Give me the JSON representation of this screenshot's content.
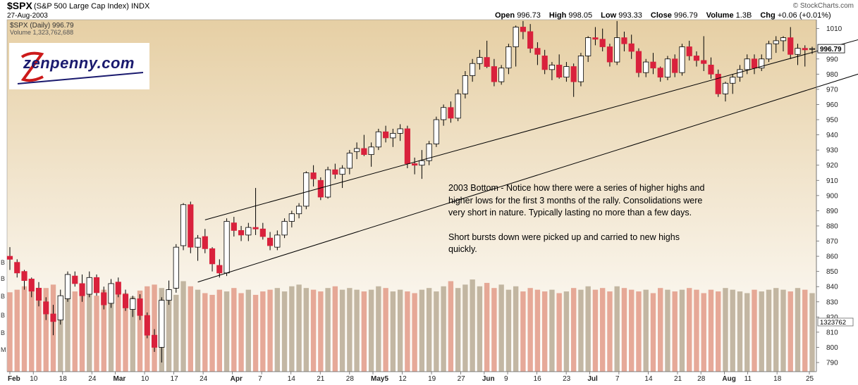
{
  "header": {
    "symbol": "$SPX",
    "name": "(S&P 500 Large Cap Index) INDX",
    "date": "27-Aug-2003",
    "credit": "© StockCharts.com",
    "ohlc": [
      {
        "label": "Open",
        "value": "996.73"
      },
      {
        "label": "High",
        "value": "998.05"
      },
      {
        "label": "Low",
        "value": "993.33"
      },
      {
        "label": "Close",
        "value": "996.79"
      },
      {
        "label": "Volume",
        "value": "1.3B"
      },
      {
        "label": "Chg",
        "value": "+0.06 (+0.01%)"
      }
    ],
    "legend_price": "$SPX (Daily) 996.79",
    "legend_volume": "Volume 1,323,762,688"
  },
  "logo": {
    "text": "zenpenny.com"
  },
  "annotation": {
    "paragraph1": "2003 Bottom - Notice how there were a series of higher highs and higher lows for the first 3 months of the rally. Consolidations were very short in nature. Typically lasting no more than a few days.",
    "paragraph2": "Short bursts down were picked up and carried to new highs quickly."
  },
  "colors": {
    "up": "#ffffff",
    "down": "#d9213c",
    "bg_top": "#e6cfa4",
    "bg_bottom": "#ffffff",
    "volume_up": "#b8aa94",
    "volume_down": "#e29a87",
    "wick": "#000000"
  },
  "chart_data": {
    "type": "candlestick",
    "y_axis": {
      "ticks": [
        790,
        800,
        810,
        820,
        830,
        840,
        850,
        860,
        870,
        880,
        890,
        900,
        910,
        920,
        930,
        940,
        950,
        960,
        970,
        980,
        990,
        1010
      ],
      "range": [
        784,
        1014
      ],
      "side": "right"
    },
    "last_price_label": "996.79",
    "volume_label": "1323762",
    "left_axis_labels": [
      "B",
      "B",
      "B",
      "B",
      "B",
      "M"
    ],
    "x_axis": {
      "labels": [
        "Feb",
        "10",
        "18",
        "24",
        "Mar",
        "10",
        "17",
        "24",
        "Apr",
        "7",
        "14",
        "21",
        "28",
        "May5",
        "12",
        "19",
        "27",
        "Jun",
        "9",
        "16",
        "23",
        "Jul",
        "7",
        "14",
        "21",
        "28",
        "Aug",
        "11",
        "18",
        "25"
      ],
      "bold": [
        "Feb",
        "Mar",
        "Apr",
        "May",
        "Jun",
        "Jul",
        "Aug"
      ]
    },
    "trendlines": [
      {
        "name": "upper-channel",
        "from": {
          "bar": 27,
          "value": 884
        },
        "to": {
          "bar": 126,
          "value": 1014
        }
      },
      {
        "name": "lower-channel",
        "from": {
          "bar": 26,
          "value": 843
        },
        "to": {
          "bar": 130,
          "value": 999
        }
      }
    ],
    "candles": [
      {
        "o": 860,
        "h": 866,
        "l": 851,
        "c": 858
      },
      {
        "o": 856,
        "h": 858,
        "l": 846,
        "c": 849
      },
      {
        "o": 850,
        "h": 851,
        "l": 838,
        "c": 844
      },
      {
        "o": 845,
        "h": 846,
        "l": 833,
        "c": 837
      },
      {
        "o": 839,
        "h": 843,
        "l": 827,
        "c": 831
      },
      {
        "o": 830,
        "h": 833,
        "l": 818,
        "c": 822
      },
      {
        "o": 822,
        "h": 828,
        "l": 808,
        "c": 817
      },
      {
        "o": 818,
        "h": 838,
        "l": 815,
        "c": 834
      },
      {
        "o": 832,
        "h": 850,
        "l": 830,
        "c": 848
      },
      {
        "o": 847,
        "h": 850,
        "l": 840,
        "c": 842
      },
      {
        "o": 842,
        "h": 848,
        "l": 830,
        "c": 834
      },
      {
        "o": 835,
        "h": 850,
        "l": 833,
        "c": 846
      },
      {
        "o": 846,
        "h": 848,
        "l": 834,
        "c": 836
      },
      {
        "o": 836,
        "h": 840,
        "l": 825,
        "c": 828
      },
      {
        "o": 829,
        "h": 845,
        "l": 826,
        "c": 842
      },
      {
        "o": 843,
        "h": 846,
        "l": 833,
        "c": 835
      },
      {
        "o": 835,
        "h": 838,
        "l": 824,
        "c": 826
      },
      {
        "o": 825,
        "h": 834,
        "l": 820,
        "c": 832
      },
      {
        "o": 832,
        "h": 835,
        "l": 818,
        "c": 821
      },
      {
        "o": 821,
        "h": 823,
        "l": 806,
        "c": 808
      },
      {
        "o": 808,
        "h": 812,
        "l": 797,
        "c": 800
      },
      {
        "o": 800,
        "h": 833,
        "l": 790,
        "c": 831
      },
      {
        "o": 831,
        "h": 844,
        "l": 828,
        "c": 838
      },
      {
        "o": 839,
        "h": 868,
        "l": 836,
        "c": 866
      },
      {
        "o": 867,
        "h": 895,
        "l": 864,
        "c": 894
      },
      {
        "o": 894,
        "h": 896,
        "l": 862,
        "c": 866
      },
      {
        "o": 866,
        "h": 874,
        "l": 857,
        "c": 872
      },
      {
        "o": 873,
        "h": 878,
        "l": 862,
        "c": 865
      },
      {
        "o": 865,
        "h": 866,
        "l": 850,
        "c": 855
      },
      {
        "o": 854,
        "h": 858,
        "l": 846,
        "c": 849
      },
      {
        "o": 849,
        "h": 885,
        "l": 847,
        "c": 883
      },
      {
        "o": 882,
        "h": 886,
        "l": 873,
        "c": 877
      },
      {
        "o": 877,
        "h": 880,
        "l": 870,
        "c": 874
      },
      {
        "o": 874,
        "h": 882,
        "l": 870,
        "c": 879
      },
      {
        "o": 879,
        "h": 905,
        "l": 874,
        "c": 878
      },
      {
        "o": 878,
        "h": 882,
        "l": 871,
        "c": 873
      },
      {
        "o": 872,
        "h": 876,
        "l": 864,
        "c": 867
      },
      {
        "o": 866,
        "h": 877,
        "l": 864,
        "c": 874
      },
      {
        "o": 874,
        "h": 885,
        "l": 872,
        "c": 883
      },
      {
        "o": 883,
        "h": 890,
        "l": 879,
        "c": 888
      },
      {
        "o": 888,
        "h": 895,
        "l": 885,
        "c": 893
      },
      {
        "o": 893,
        "h": 916,
        "l": 891,
        "c": 915
      },
      {
        "o": 915,
        "h": 920,
        "l": 906,
        "c": 911
      },
      {
        "o": 910,
        "h": 912,
        "l": 897,
        "c": 899
      },
      {
        "o": 899,
        "h": 919,
        "l": 898,
        "c": 917
      },
      {
        "o": 917,
        "h": 921,
        "l": 911,
        "c": 914
      },
      {
        "o": 914,
        "h": 920,
        "l": 905,
        "c": 918
      },
      {
        "o": 918,
        "h": 930,
        "l": 914,
        "c": 928
      },
      {
        "o": 929,
        "h": 935,
        "l": 924,
        "c": 931
      },
      {
        "o": 931,
        "h": 940,
        "l": 926,
        "c": 927
      },
      {
        "o": 927,
        "h": 935,
        "l": 919,
        "c": 932
      },
      {
        "o": 932,
        "h": 944,
        "l": 930,
        "c": 942
      },
      {
        "o": 942,
        "h": 946,
        "l": 935,
        "c": 938
      },
      {
        "o": 938,
        "h": 944,
        "l": 932,
        "c": 941
      },
      {
        "o": 941,
        "h": 947,
        "l": 936,
        "c": 944
      },
      {
        "o": 944,
        "h": 946,
        "l": 918,
        "c": 921
      },
      {
        "o": 921,
        "h": 925,
        "l": 914,
        "c": 920
      },
      {
        "o": 920,
        "h": 930,
        "l": 911,
        "c": 923
      },
      {
        "o": 923,
        "h": 936,
        "l": 920,
        "c": 934
      },
      {
        "o": 934,
        "h": 952,
        "l": 932,
        "c": 950
      },
      {
        "o": 950,
        "h": 960,
        "l": 946,
        "c": 958
      },
      {
        "o": 958,
        "h": 962,
        "l": 948,
        "c": 951
      },
      {
        "o": 951,
        "h": 970,
        "l": 949,
        "c": 967
      },
      {
        "o": 967,
        "h": 982,
        "l": 964,
        "c": 979
      },
      {
        "o": 979,
        "h": 990,
        "l": 975,
        "c": 987
      },
      {
        "o": 987,
        "h": 996,
        "l": 983,
        "c": 991
      },
      {
        "o": 991,
        "h": 1002,
        "l": 984,
        "c": 985
      },
      {
        "o": 985,
        "h": 990,
        "l": 972,
        "c": 975
      },
      {
        "o": 975,
        "h": 986,
        "l": 973,
        "c": 984
      },
      {
        "o": 984,
        "h": 1000,
        "l": 980,
        "c": 998
      },
      {
        "o": 998,
        "h": 1012,
        "l": 985,
        "c": 1011
      },
      {
        "o": 1011,
        "h": 1015,
        "l": 1003,
        "c": 1008
      },
      {
        "o": 1008,
        "h": 1013,
        "l": 994,
        "c": 997
      },
      {
        "o": 997,
        "h": 1001,
        "l": 986,
        "c": 993
      },
      {
        "o": 992,
        "h": 996,
        "l": 980,
        "c": 983
      },
      {
        "o": 983,
        "h": 988,
        "l": 976,
        "c": 986
      },
      {
        "o": 986,
        "h": 993,
        "l": 977,
        "c": 978
      },
      {
        "o": 978,
        "h": 988,
        "l": 975,
        "c": 985
      },
      {
        "o": 985,
        "h": 987,
        "l": 965,
        "c": 975
      },
      {
        "o": 975,
        "h": 994,
        "l": 972,
        "c": 992
      },
      {
        "o": 992,
        "h": 1005,
        "l": 988,
        "c": 1004
      },
      {
        "o": 1004,
        "h": 1011,
        "l": 999,
        "c": 1003
      },
      {
        "o": 1003,
        "h": 1010,
        "l": 995,
        "c": 998
      },
      {
        "o": 998,
        "h": 1000,
        "l": 985,
        "c": 988
      },
      {
        "o": 988,
        "h": 1015,
        "l": 986,
        "c": 1004
      },
      {
        "o": 1004,
        "h": 1008,
        "l": 995,
        "c": 1000
      },
      {
        "o": 1000,
        "h": 1006,
        "l": 990,
        "c": 995
      },
      {
        "o": 995,
        "h": 997,
        "l": 978,
        "c": 981
      },
      {
        "o": 981,
        "h": 990,
        "l": 978,
        "c": 988
      },
      {
        "o": 988,
        "h": 994,
        "l": 980,
        "c": 984
      },
      {
        "o": 984,
        "h": 985,
        "l": 975,
        "c": 978
      },
      {
        "o": 978,
        "h": 992,
        "l": 976,
        "c": 990
      },
      {
        "o": 990,
        "h": 993,
        "l": 978,
        "c": 981
      },
      {
        "o": 981,
        "h": 1000,
        "l": 979,
        "c": 998
      },
      {
        "o": 998,
        "h": 1002,
        "l": 989,
        "c": 992
      },
      {
        "o": 992,
        "h": 995,
        "l": 985,
        "c": 989
      },
      {
        "o": 989,
        "h": 1005,
        "l": 982,
        "c": 987
      },
      {
        "o": 986,
        "h": 991,
        "l": 977,
        "c": 980
      },
      {
        "o": 980,
        "h": 983,
        "l": 965,
        "c": 967
      },
      {
        "o": 967,
        "h": 975,
        "l": 962,
        "c": 974
      },
      {
        "o": 974,
        "h": 980,
        "l": 967,
        "c": 978
      },
      {
        "o": 978,
        "h": 986,
        "l": 975,
        "c": 983
      },
      {
        "o": 983,
        "h": 993,
        "l": 980,
        "c": 990
      },
      {
        "o": 990,
        "h": 993,
        "l": 980,
        "c": 984
      },
      {
        "o": 984,
        "h": 993,
        "l": 982,
        "c": 990
      },
      {
        "o": 990,
        "h": 1002,
        "l": 988,
        "c": 1000
      },
      {
        "o": 1000,
        "h": 1005,
        "l": 994,
        "c": 1002
      },
      {
        "o": 1002,
        "h": 1005,
        "l": 995,
        "c": 1004
      },
      {
        "o": 1004,
        "h": 1011,
        "l": 990,
        "c": 993
      },
      {
        "o": 993,
        "h": 1000,
        "l": 986,
        "c": 997
      },
      {
        "o": 997,
        "h": 999,
        "l": 985,
        "c": 996
      },
      {
        "o": 996.73,
        "h": 998.05,
        "l": 993.33,
        "c": 996.79
      }
    ],
    "volume": [
      0.83,
      0.86,
      0.9,
      0.84,
      0.8,
      0.88,
      0.92,
      0.76,
      0.8,
      0.84,
      0.88,
      0.82,
      0.79,
      0.86,
      0.9,
      0.84,
      0.82,
      0.78,
      0.85,
      0.9,
      0.92,
      0.88,
      0.84,
      0.8,
      0.96,
      0.9,
      0.86,
      0.82,
      0.8,
      0.86,
      0.84,
      0.88,
      0.82,
      0.86,
      0.8,
      0.84,
      0.86,
      0.88,
      0.84,
      0.9,
      0.92,
      0.88,
      0.86,
      0.84,
      0.88,
      0.9,
      0.86,
      0.88,
      0.86,
      0.84,
      0.86,
      0.9,
      0.88,
      0.84,
      0.86,
      0.84,
      0.82,
      0.86,
      0.88,
      0.84,
      0.9,
      0.96,
      0.88,
      0.92,
      0.98,
      0.9,
      0.94,
      0.88,
      0.92,
      0.86,
      0.9,
      0.84,
      0.88,
      0.86,
      0.84,
      0.86,
      0.82,
      0.84,
      0.88,
      0.86,
      0.9,
      0.86,
      0.88,
      0.84,
      0.9,
      0.88,
      0.86,
      0.84,
      0.86,
      0.82,
      0.88,
      0.86,
      0.84,
      0.86,
      0.88,
      0.86,
      0.82,
      0.86,
      0.84,
      0.88,
      0.86,
      0.84,
      0.82,
      0.86,
      0.84,
      0.86,
      0.88,
      0.86,
      0.84,
      0.88,
      0.86,
      0.82
    ]
  }
}
